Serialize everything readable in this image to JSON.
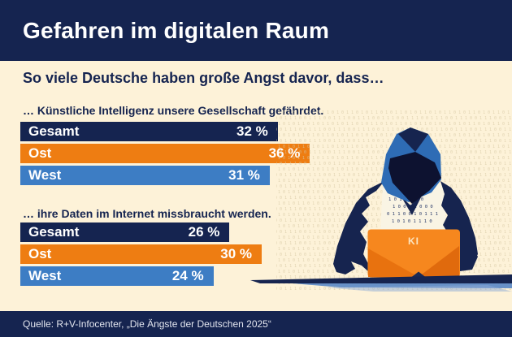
{
  "header": {
    "title": "Gefahren im digitalen Raum"
  },
  "subtitle": "So viele Deutsche haben große Angst davor, dass…",
  "footer": {
    "source": "Quelle: R+V-Infocenter, „Die Ängste der Deutschen 2025“"
  },
  "colors": {
    "navy": "#152450",
    "orange": "#ee7d12",
    "blue": "#3d7dc4",
    "cream": "#fdf2d8",
    "bar_text": "#ffffff",
    "hood_blue": "#2e6cb5",
    "figure_navy": "#16244f",
    "laptop_orange": "#f6871e"
  },
  "chart_data": [
    {
      "type": "bar",
      "orientation": "horizontal",
      "title": "… Künstliche Intelligenz unsere Gesellschaft gefährdet.",
      "categories": [
        "Gesamt",
        "Ost",
        "West"
      ],
      "values": [
        32,
        36,
        31
      ],
      "unit": "%",
      "colors": [
        "#152450",
        "#ee7d12",
        "#3d7dc4"
      ],
      "xlim": [
        0,
        40
      ],
      "value_labels": [
        "32 %",
        "36 %",
        "31 %"
      ]
    },
    {
      "type": "bar",
      "orientation": "horizontal",
      "title": "… ihre Daten im Internet missbraucht werden.",
      "categories": [
        "Gesamt",
        "Ost",
        "West"
      ],
      "values": [
        26,
        30,
        24
      ],
      "unit": "%",
      "colors": [
        "#152450",
        "#ee7d12",
        "#3d7dc4"
      ],
      "xlim": [
        0,
        40
      ],
      "value_labels": [
        "26 %",
        "30 %",
        "24 %"
      ]
    }
  ],
  "illustration": {
    "laptop_label": "KI",
    "binary_row_a": "0 1 1 0 1 0 0 1",
    "binary_row_b": "1 0 0 1 1 0 1 0",
    "chest_digits": [
      "1 0 1 1 0 0 0",
      "1 0 0 0 1 0 0 0",
      "0 1 1 0 0 1 0 1 1 1",
      "1 0 1 0 1 1 1 0"
    ]
  }
}
